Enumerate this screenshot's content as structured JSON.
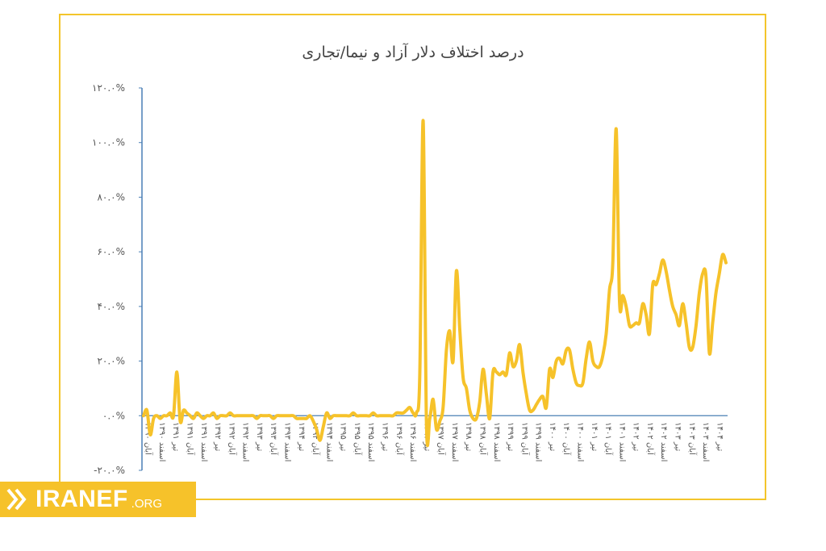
{
  "brand": {
    "name": "IRANEF",
    "suffix": ".ORG",
    "color": "#f6c22a"
  },
  "chart_data": {
    "type": "line",
    "title": "درصد اختلاف دلار آزاد و نیما/تجاری",
    "xlabel": "",
    "ylabel": "",
    "ylim": [
      -20,
      120
    ],
    "y_ticks": [
      -20,
      0,
      20,
      40,
      60,
      80,
      100,
      120
    ],
    "y_tick_labels": [
      "-۲۰.۰%",
      "۰.۰%",
      "۲۰.۰%",
      "۴۰.۰%",
      "۶۰.۰%",
      "۸۰.۰%",
      "۱۰۰.۰%",
      "۱۲۰.۰%"
    ],
    "x_tick_labels": [
      "آبان ۱۳۹۰",
      "اسفند ۱۳۹۰",
      "تیر ۱۳۹۱",
      "آبان ۱۳۹۱",
      "اسفند ۱۳۹۱",
      "تیر ۱۳۹۲",
      "آبان ۱۳۹۲",
      "اسفند ۱۳۹۲",
      "تیر ۱۳۹۳",
      "آبان ۱۳۹۳",
      "اسفند ۱۳۹۳",
      "تیر ۱۳۹۴",
      "آبان ۱۳۹۴",
      "اسفند ۱۳۹۴",
      "تیر ۱۳۹۵",
      "آبان ۱۳۹۵",
      "اسفند ۱۳۹۵",
      "تیر ۱۳۹۶",
      "آبان ۱۳۹۶",
      "اسفند ۱۳۹۶",
      "تیر ۱۳۹۷",
      "آبان ۱۳۹۷",
      "اسفند ۱۳۹۷",
      "تیر ۱۳۹۸",
      "آبان ۱۳۹۸",
      "اسفند ۱۳۹۸",
      "تیر ۱۳۹۹",
      "آبان ۱۳۹۹",
      "اسفند ۱۳۹۹",
      "تیر ۱۴۰۰",
      "آبان ۱۴۰۰",
      "اسفند ۱۴۰۰",
      "تیر ۱۴۰۱",
      "آبان ۱۴۰۱",
      "اسفند ۱۴۰۱",
      "تیر ۱۴۰۲",
      "آبان ۱۴۰۲",
      "اسفند ۱۴۰۲",
      "تیر ۱۴۰۳",
      "آبان ۱۴۰۳",
      "اسفند ۱۴۰۳",
      "تیر ۱۴۰۴"
    ],
    "grid": false,
    "legend": "none",
    "line_color": "#f6c22a",
    "axis_color": "#4a7fb5",
    "series": [
      {
        "values": [
          0,
          2,
          -7,
          -1,
          0,
          -1,
          0,
          0,
          1,
          0,
          16,
          -2,
          2,
          1,
          0,
          -1,
          1,
          0,
          -1,
          0,
          0,
          1,
          -1,
          0,
          0,
          0,
          1,
          0,
          0,
          0,
          0,
          0,
          0,
          0,
          -1,
          0,
          0,
          0,
          0,
          -1,
          0,
          0,
          0,
          0,
          0,
          0,
          -1,
          -1,
          -1,
          -1,
          0,
          -2,
          -5,
          -9,
          -4,
          1,
          -1,
          0,
          0,
          0,
          0,
          0,
          0,
          1,
          0,
          0,
          0,
          0,
          0,
          1,
          0,
          0,
          0,
          0,
          0,
          0,
          1,
          1,
          1,
          2,
          3,
          1,
          1,
          15,
          108,
          -3,
          -1,
          6,
          -5,
          -2,
          3,
          24,
          31,
          20,
          53,
          32,
          14,
          10,
          2,
          -1,
          -1,
          5,
          17,
          8,
          -1,
          16,
          16,
          15,
          16,
          15,
          23,
          18,
          20,
          26,
          16,
          8,
          2,
          2,
          4,
          6,
          7,
          3,
          17,
          14,
          20,
          21,
          19,
          24,
          24,
          17,
          12,
          11,
          12,
          21,
          27,
          20,
          18,
          18,
          22,
          30,
          46,
          56,
          105,
          42,
          44,
          40,
          33,
          33,
          34,
          34,
          41,
          37,
          30,
          48,
          48,
          52,
          57,
          53,
          46,
          40,
          37,
          33,
          41,
          34,
          25,
          25,
          33,
          45,
          52,
          51,
          23,
          34,
          45,
          52,
          59,
          56
        ]
      }
    ]
  }
}
